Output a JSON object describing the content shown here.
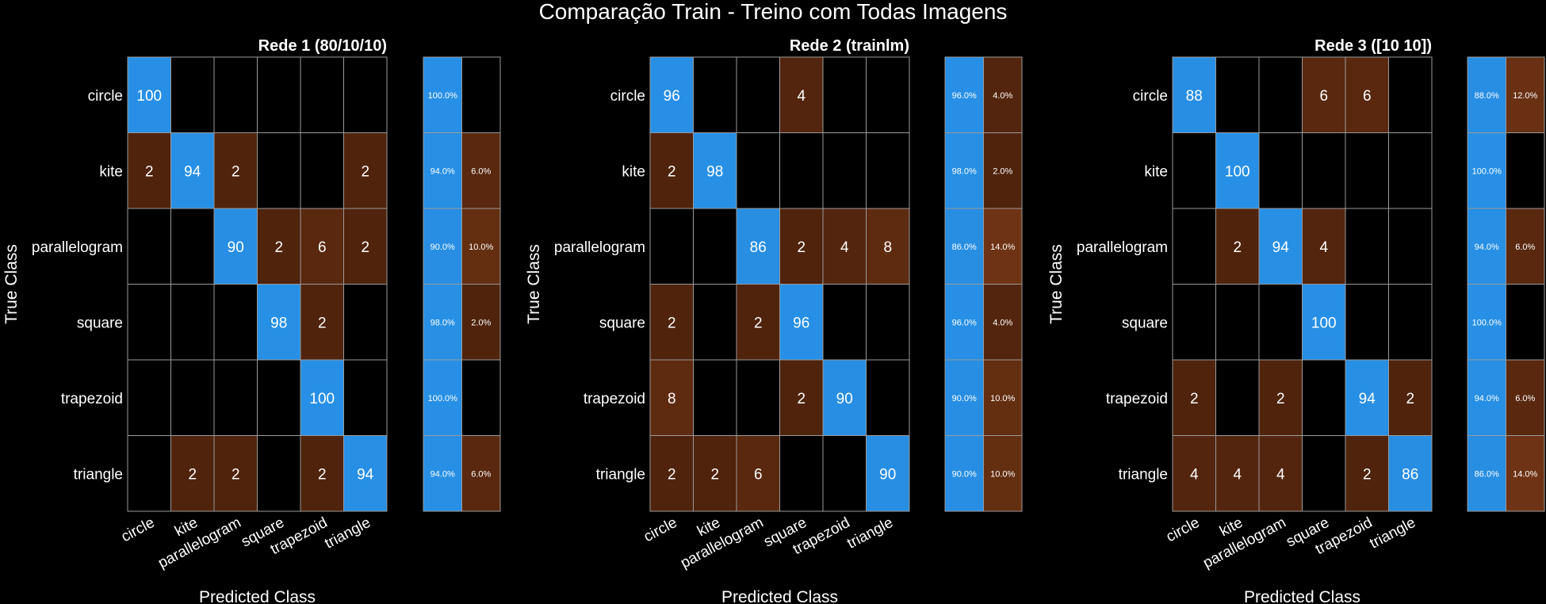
{
  "title": "Comparação Train - Treino com Todas Imagens",
  "chart_data": [
    {
      "type": "heatmap",
      "title": "Rede 1 (80/10/10)",
      "xlabel": "Predicted Class",
      "ylabel": "True Class",
      "classes": [
        "circle",
        "kite",
        "parallelogram",
        "square",
        "trapezoid",
        "triangle"
      ],
      "matrix": [
        [
          100,
          null,
          null,
          null,
          null,
          null
        ],
        [
          2,
          94,
          2,
          null,
          null,
          2
        ],
        [
          null,
          null,
          90,
          2,
          6,
          2
        ],
        [
          null,
          null,
          null,
          98,
          2,
          null
        ],
        [
          null,
          null,
          null,
          null,
          100,
          null
        ],
        [
          null,
          2,
          2,
          null,
          2,
          94
        ]
      ],
      "row_summary": [
        [
          "100.0%",
          ""
        ],
        [
          "94.0%",
          "6.0%"
        ],
        [
          "90.0%",
          "10.0%"
        ],
        [
          "98.0%",
          "2.0%"
        ],
        [
          "100.0%",
          ""
        ],
        [
          "94.0%",
          "6.0%"
        ]
      ]
    },
    {
      "type": "heatmap",
      "title": "Rede 2 (trainlm)",
      "xlabel": "Predicted Class",
      "ylabel": "True Class",
      "classes": [
        "circle",
        "kite",
        "parallelogram",
        "square",
        "trapezoid",
        "triangle"
      ],
      "matrix": [
        [
          96,
          null,
          null,
          4,
          null,
          null
        ],
        [
          2,
          98,
          null,
          null,
          null,
          null
        ],
        [
          null,
          null,
          86,
          2,
          4,
          8
        ],
        [
          2,
          null,
          2,
          96,
          null,
          null
        ],
        [
          8,
          null,
          null,
          2,
          90,
          null
        ],
        [
          2,
          2,
          6,
          null,
          null,
          90
        ]
      ],
      "row_summary": [
        [
          "96.0%",
          "4.0%"
        ],
        [
          "98.0%",
          "2.0%"
        ],
        [
          "86.0%",
          "14.0%"
        ],
        [
          "96.0%",
          "4.0%"
        ],
        [
          "90.0%",
          "10.0%"
        ],
        [
          "90.0%",
          "10.0%"
        ]
      ]
    },
    {
      "type": "heatmap",
      "title": "Rede 3 ([10 10])",
      "xlabel": "Predicted Class",
      "ylabel": "True Class",
      "classes": [
        "circle",
        "kite",
        "parallelogram",
        "square",
        "trapezoid",
        "triangle"
      ],
      "matrix": [
        [
          88,
          null,
          null,
          6,
          6,
          null
        ],
        [
          null,
          100,
          null,
          null,
          null,
          null
        ],
        [
          null,
          2,
          94,
          4,
          null,
          null
        ],
        [
          null,
          null,
          null,
          100,
          null,
          null
        ],
        [
          2,
          null,
          2,
          null,
          94,
          2
        ],
        [
          4,
          4,
          4,
          null,
          2,
          86
        ]
      ],
      "row_summary": [
        [
          "88.0%",
          "12.0%"
        ],
        [
          "100.0%",
          ""
        ],
        [
          "94.0%",
          "6.0%"
        ],
        [
          "100.0%",
          ""
        ],
        [
          "94.0%",
          "6.0%"
        ],
        [
          "86.0%",
          "14.0%"
        ]
      ]
    }
  ],
  "colors": {
    "background": "#000000",
    "grid": "#9a9a9a",
    "correct_high": "#2790e6",
    "correct_low": "#2a7fc9",
    "error_low": "#4a200b",
    "error_high": "#6e3314"
  }
}
